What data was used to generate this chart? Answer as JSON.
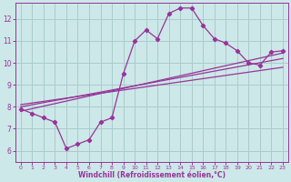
{
  "xlabel": "Windchill (Refroidissement éolien,°C)",
  "background_color": "#cce8e8",
  "plot_bg_color": "#cce8e8",
  "line_color": "#993399",
  "grid_color": "#aacccc",
  "xlim": [
    -0.5,
    23.5
  ],
  "ylim": [
    5.5,
    12.75
  ],
  "xticks": [
    0,
    1,
    2,
    3,
    4,
    5,
    6,
    7,
    8,
    9,
    10,
    11,
    12,
    13,
    14,
    15,
    16,
    17,
    18,
    19,
    20,
    21,
    22,
    23
  ],
  "yticks": [
    6,
    7,
    8,
    9,
    10,
    11,
    12
  ],
  "main_y": [
    7.9,
    7.7,
    7.5,
    7.3,
    6.1,
    6.3,
    6.5,
    7.3,
    7.5,
    9.5,
    11.0,
    11.5,
    11.1,
    12.25,
    12.5,
    12.5,
    11.7,
    11.1,
    10.9,
    10.55,
    10.0,
    9.9,
    10.5,
    10.55
  ],
  "reg_lines": [
    [
      7.8,
      10.45
    ],
    [
      8.0,
      10.2
    ],
    [
      8.1,
      9.8
    ]
  ]
}
